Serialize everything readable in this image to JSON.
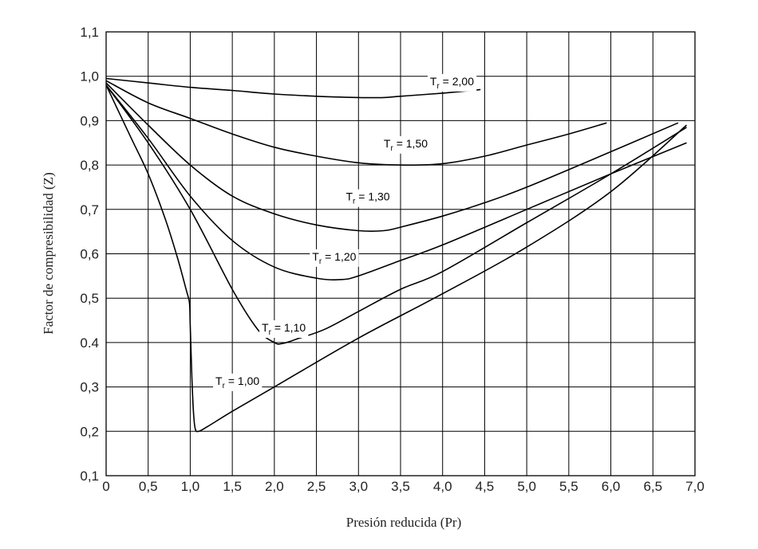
{
  "chart_data": {
    "type": "line",
    "title": "",
    "xlabel": "Presión reducida (Pr)",
    "ylabel": "Factor de compresibilidad (Z)",
    "xlim": [
      0,
      7.0
    ],
    "ylim": [
      0.1,
      1.1
    ],
    "grid": true,
    "x_tick_labels": [
      "0",
      "0,5",
      "1,0",
      "1,5",
      "2,0",
      "2,5",
      "3,0",
      "3,5",
      "4,0",
      "4,5",
      "5,0",
      "5,5",
      "6,0",
      "6,5",
      "7,0"
    ],
    "y_tick_labels": [
      "0,1",
      "0,2",
      "0,3",
      "0.4",
      "0,5",
      "0,6",
      "0,7",
      "0,8",
      "0,9",
      "1,0",
      "1,1"
    ],
    "series": [
      {
        "name": "Tr = 1,00",
        "label_main": "T",
        "label_sub": "r",
        "label_rest": " = 1,00",
        "label_at": [
          1.3,
          0.305
        ],
        "points": [
          [
            0,
            0.98
          ],
          [
            0.3,
            0.86
          ],
          [
            0.5,
            0.78
          ],
          [
            0.7,
            0.68
          ],
          [
            0.85,
            0.59
          ],
          [
            0.95,
            0.52
          ],
          [
            0.99,
            0.49
          ],
          [
            1.0,
            0.44
          ],
          [
            1.02,
            0.32
          ],
          [
            1.04,
            0.24
          ],
          [
            1.06,
            0.205
          ],
          [
            1.1,
            0.2
          ],
          [
            1.2,
            0.21
          ],
          [
            1.5,
            0.245
          ],
          [
            2.0,
            0.3
          ],
          [
            3.0,
            0.41
          ],
          [
            4.0,
            0.51
          ],
          [
            5.0,
            0.615
          ],
          [
            6.0,
            0.74
          ],
          [
            6.9,
            0.89
          ]
        ]
      },
      {
        "name": "Tr = 1,10",
        "label_main": "T",
        "label_sub": "r",
        "label_rest": " = 1,10",
        "label_at": [
          1.85,
          0.425
        ],
        "points": [
          [
            0,
            0.98
          ],
          [
            0.5,
            0.85
          ],
          [
            1.0,
            0.7
          ],
          [
            1.5,
            0.52
          ],
          [
            1.8,
            0.43
          ],
          [
            2.0,
            0.4
          ],
          [
            2.1,
            0.398
          ],
          [
            2.3,
            0.41
          ],
          [
            2.6,
            0.43
          ],
          [
            3.0,
            0.47
          ],
          [
            3.5,
            0.52
          ],
          [
            4.0,
            0.56
          ],
          [
            5.0,
            0.67
          ],
          [
            6.0,
            0.78
          ],
          [
            6.9,
            0.885
          ]
        ]
      },
      {
        "name": "Tr = 1,20",
        "label_main": "T",
        "label_sub": "r",
        "label_rest": " = 1,20",
        "label_at": [
          2.45,
          0.585
        ],
        "points": [
          [
            0,
            0.98
          ],
          [
            0.5,
            0.86
          ],
          [
            1.0,
            0.73
          ],
          [
            1.5,
            0.63
          ],
          [
            2.0,
            0.57
          ],
          [
            2.5,
            0.545
          ],
          [
            2.8,
            0.542
          ],
          [
            3.0,
            0.55
          ],
          [
            3.5,
            0.585
          ],
          [
            4.0,
            0.62
          ],
          [
            5.0,
            0.7
          ],
          [
            6.0,
            0.78
          ],
          [
            6.9,
            0.85
          ]
        ]
      },
      {
        "name": "Tr = 1,30",
        "label_main": "T",
        "label_sub": "r",
        "label_rest": " = 1,30",
        "label_at": [
          2.85,
          0.72
        ],
        "points": [
          [
            0,
            0.985
          ],
          [
            0.5,
            0.89
          ],
          [
            1.0,
            0.8
          ],
          [
            1.5,
            0.73
          ],
          [
            2.0,
            0.69
          ],
          [
            2.5,
            0.665
          ],
          [
            3.0,
            0.652
          ],
          [
            3.3,
            0.652
          ],
          [
            3.5,
            0.66
          ],
          [
            4.0,
            0.685
          ],
          [
            4.5,
            0.715
          ],
          [
            5.0,
            0.75
          ],
          [
            6.0,
            0.83
          ],
          [
            6.8,
            0.895
          ]
        ]
      },
      {
        "name": "Tr = 1,50",
        "label_main": "T",
        "label_sub": "r",
        "label_rest": " = 1,50",
        "label_at": [
          3.3,
          0.84
        ],
        "points": [
          [
            0,
            0.99
          ],
          [
            0.5,
            0.94
          ],
          [
            1.0,
            0.905
          ],
          [
            1.5,
            0.87
          ],
          [
            2.0,
            0.84
          ],
          [
            2.5,
            0.82
          ],
          [
            3.0,
            0.805
          ],
          [
            3.5,
            0.8
          ],
          [
            4.0,
            0.803
          ],
          [
            4.5,
            0.82
          ],
          [
            5.0,
            0.845
          ],
          [
            5.5,
            0.87
          ],
          [
            5.95,
            0.895
          ]
        ]
      },
      {
        "name": "Tr = 2,00",
        "label_main": "T",
        "label_sub": "r",
        "label_rest": " = 2,00",
        "label_at": [
          3.85,
          0.98
        ],
        "points": [
          [
            0,
            0.995
          ],
          [
            0.5,
            0.985
          ],
          [
            1.0,
            0.975
          ],
          [
            1.5,
            0.968
          ],
          [
            2.0,
            0.96
          ],
          [
            2.5,
            0.955
          ],
          [
            3.0,
            0.952
          ],
          [
            3.3,
            0.952
          ],
          [
            3.5,
            0.955
          ],
          [
            4.0,
            0.962
          ],
          [
            4.45,
            0.97
          ]
        ]
      }
    ]
  }
}
